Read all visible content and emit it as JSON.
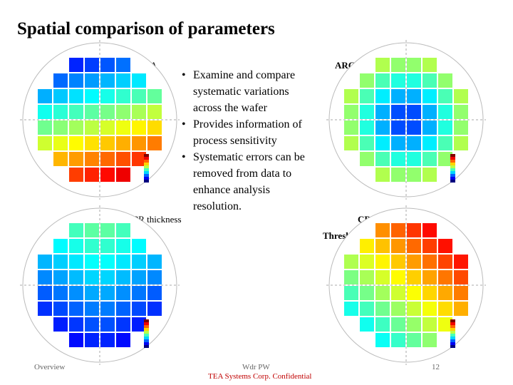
{
  "header": {
    "title": "Spatial comparison of parameters"
  },
  "maps": [
    {
      "label": "SWA"
    },
    {
      "label": "ARC Coat"
    },
    {
      "label": "PR thickness"
    },
    {
      "label": "CD",
      "sublabel": "Threshold"
    }
  ],
  "bullets": [
    "Examine and compare systematic variations across the wafer",
    "Provides information of process sensitivity",
    "Systematic errors can be removed from data to enhance analysis resolution."
  ],
  "footer": {
    "left": "Overview",
    "center": "Wdr PW",
    "confidential": "TEA Systems Corp. Confidential",
    "page": "12"
  }
}
